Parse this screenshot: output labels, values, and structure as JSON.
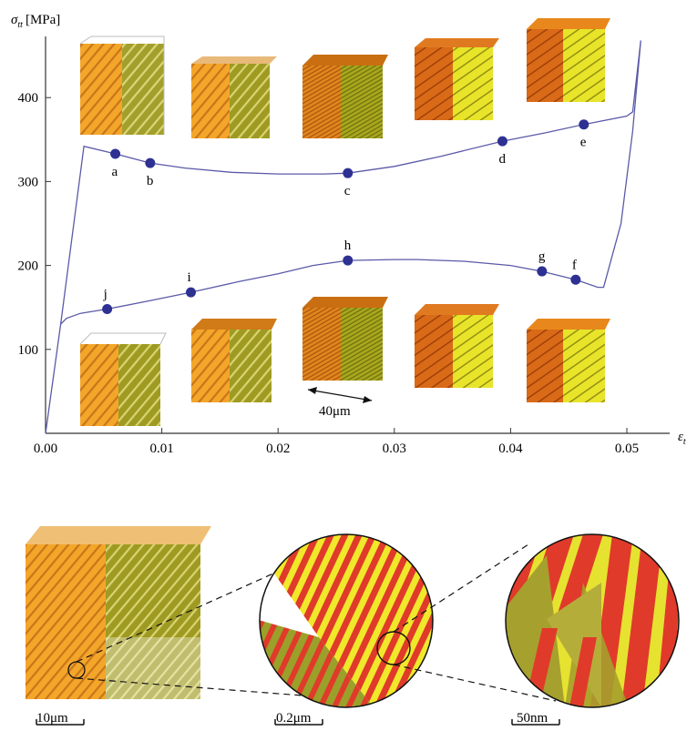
{
  "chart_data": {
    "type": "line",
    "ylabel_symbol": "σ",
    "ylabel_sub": "tt",
    "ylabel_unit": "[MPa]",
    "xlabel_symbol": "ε",
    "xlabel_sub": "t",
    "xlim": [
      0.0,
      0.055
    ],
    "ylim": [
      0,
      470
    ],
    "x_ticks": [
      "0.00",
      "0.01",
      "0.02",
      "0.03",
      "0.04",
      "0.05"
    ],
    "y_ticks": [
      "100",
      "200",
      "300",
      "400"
    ],
    "series": [
      {
        "x": [
          0.0,
          0.0013,
          0.0033,
          0.006,
          0.009,
          0.012,
          0.016,
          0.02,
          0.024,
          0.026,
          0.03,
          0.034,
          0.0393,
          0.043,
          0.0463,
          0.05,
          0.0505,
          0.0512
        ],
        "y": [
          0,
          130,
          342,
          333,
          322,
          316,
          311,
          309,
          309,
          310,
          318,
          330,
          348,
          358,
          368,
          378,
          383,
          468
        ]
      },
      {
        "x": [
          0.0512,
          0.0505,
          0.0495,
          0.048,
          0.0475,
          0.0456,
          0.0427,
          0.04,
          0.036,
          0.032,
          0.03,
          0.026,
          0.023,
          0.02,
          0.0167,
          0.0125,
          0.009,
          0.0053,
          0.003,
          0.0018,
          0.0013,
          0.0
        ]
      }
    ],
    "series_y_return": [
      468,
      360,
      250,
      174,
      174,
      183,
      193,
      200,
      205,
      207,
      207,
      206,
      200,
      190,
      181,
      168,
      158,
      148,
      143,
      137,
      130,
      0
    ],
    "points": [
      {
        "label": "a",
        "x": 0.006,
        "y": 333
      },
      {
        "label": "b",
        "x": 0.009,
        "y": 322
      },
      {
        "label": "c",
        "x": 0.026,
        "y": 310
      },
      {
        "label": "d",
        "x": 0.0393,
        "y": 348
      },
      {
        "label": "e",
        "x": 0.0463,
        "y": 368
      },
      {
        "label": "f",
        "x": 0.0456,
        "y": 183
      },
      {
        "label": "g",
        "x": 0.0427,
        "y": 193
      },
      {
        "label": "h",
        "x": 0.026,
        "y": 206
      },
      {
        "label": "i",
        "x": 0.0125,
        "y": 168
      },
      {
        "label": "j",
        "x": 0.0053,
        "y": 148
      }
    ],
    "line_color": "#5a5aa8",
    "point_color": "#2e3192"
  },
  "annotations": {
    "span_label": "40μm",
    "scalebars": [
      "10μm",
      "0.2μm",
      "50nm"
    ]
  },
  "colors": {
    "orange": "#f4a62a",
    "orange_dark": "#c86a10",
    "olive": "#9a9a1e",
    "yellow": "#f0f020",
    "red": "#e03a2a"
  }
}
